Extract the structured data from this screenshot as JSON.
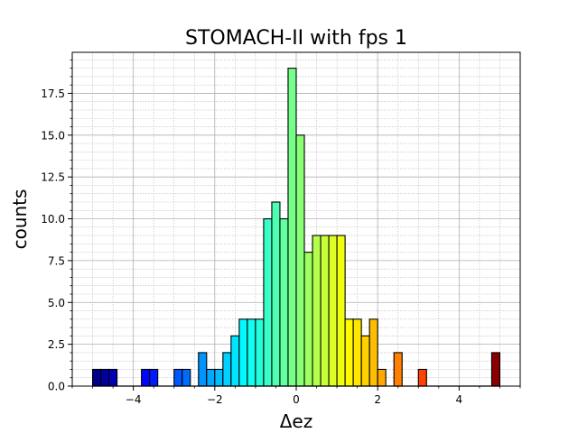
{
  "chart_data": {
    "type": "bar",
    "title": "STOMACH-II with fps 1",
    "xlabel": "Δez",
    "ylabel": "counts",
    "xlim": [
      -5.5,
      5.5
    ],
    "ylim": [
      0,
      19.95
    ],
    "grid": true,
    "minor_grid": true,
    "bin_width": 0.2,
    "x_ticks": [
      -4,
      -2,
      0,
      2,
      4
    ],
    "x_tick_labels": [
      "−4",
      "−2",
      "0",
      "2",
      "4"
    ],
    "y_ticks": [
      0,
      2.5,
      5,
      7.5,
      10,
      12.5,
      15,
      17.5
    ],
    "y_tick_labels": [
      "0.0",
      "2.5",
      "5.0",
      "7.5",
      "10.0",
      "12.5",
      "15.0",
      "17.5"
    ],
    "colormap": "jet",
    "bins": [
      {
        "x": -4.9,
        "value": 1
      },
      {
        "x": -4.7,
        "value": 1
      },
      {
        "x": -4.5,
        "value": 1
      },
      {
        "x": -3.7,
        "value": 1
      },
      {
        "x": -3.5,
        "value": 1
      },
      {
        "x": -2.9,
        "value": 1
      },
      {
        "x": -2.7,
        "value": 1
      },
      {
        "x": -2.3,
        "value": 2
      },
      {
        "x": -2.1,
        "value": 1
      },
      {
        "x": -1.9,
        "value": 1
      },
      {
        "x": -1.7,
        "value": 2
      },
      {
        "x": -1.5,
        "value": 3
      },
      {
        "x": -1.3,
        "value": 4
      },
      {
        "x": -1.1,
        "value": 4
      },
      {
        "x": -0.9,
        "value": 4
      },
      {
        "x": -0.7,
        "value": 10
      },
      {
        "x": -0.5,
        "value": 11
      },
      {
        "x": -0.3,
        "value": 10
      },
      {
        "x": -0.1,
        "value": 19
      },
      {
        "x": 0.1,
        "value": 15
      },
      {
        "x": 0.3,
        "value": 8
      },
      {
        "x": 0.5,
        "value": 9
      },
      {
        "x": 0.7,
        "value": 9
      },
      {
        "x": 0.9,
        "value": 9
      },
      {
        "x": 1.1,
        "value": 9
      },
      {
        "x": 1.3,
        "value": 4
      },
      {
        "x": 1.5,
        "value": 4
      },
      {
        "x": 1.7,
        "value": 3
      },
      {
        "x": 1.9,
        "value": 4
      },
      {
        "x": 2.1,
        "value": 1
      },
      {
        "x": 2.5,
        "value": 2
      },
      {
        "x": 3.1,
        "value": 1
      },
      {
        "x": 4.9,
        "value": 2
      }
    ]
  }
}
